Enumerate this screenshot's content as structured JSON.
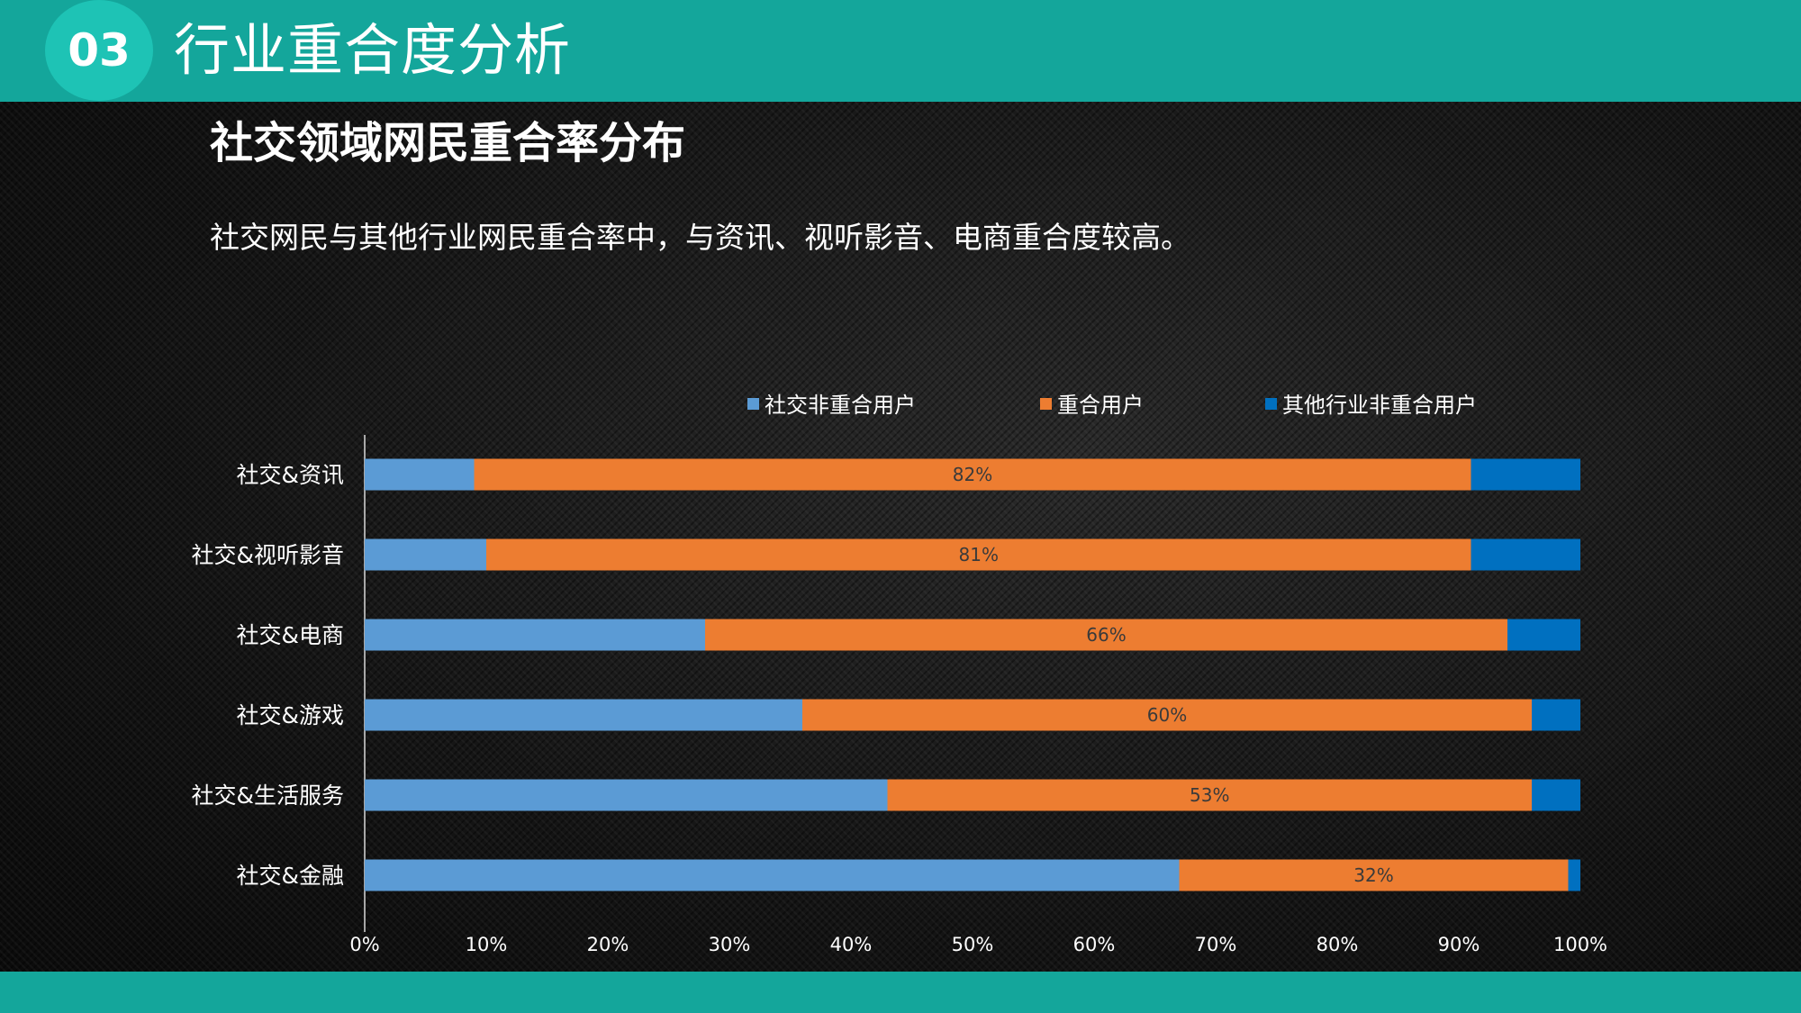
{
  "header": {
    "badge": "03",
    "title": "行业重合度分析"
  },
  "section_title": "社交领域网民重合率分布",
  "description": "社交网民与其他行业网民重合率中，与资讯、视听影音、电商重合度较高。",
  "colors": {
    "header": "#14a69b",
    "badge": "#1ec3b5",
    "series_non_overlap_social": "#5b9bd5",
    "series_overlap": "#ed7d31",
    "series_non_overlap_other": "#0070c0"
  },
  "chart_data": {
    "type": "bar",
    "orientation": "horizontal",
    "stacked": "percent",
    "categories": [
      "社交&资讯",
      "社交&视听影音",
      "社交&电商",
      "社交&游戏",
      "社交&生活服务",
      "社交&金融"
    ],
    "series": [
      {
        "name": "社交非重合用户",
        "values": [
          9,
          10,
          28,
          36,
          43,
          67
        ]
      },
      {
        "name": "重合用户",
        "values": [
          82,
          81,
          66,
          60,
          53,
          32
        ]
      },
      {
        "name": "其他行业非重合用户",
        "values": [
          9,
          9,
          6,
          4,
          4,
          1
        ]
      }
    ],
    "data_labels": [
      "82%",
      "81%",
      "66%",
      "60%",
      "53%",
      "32%"
    ],
    "x_ticks": [
      "0%",
      "10%",
      "20%",
      "30%",
      "40%",
      "50%",
      "60%",
      "70%",
      "80%",
      "90%",
      "100%"
    ],
    "xlim": [
      0,
      100
    ],
    "legend_position": "top",
    "grid": false
  }
}
